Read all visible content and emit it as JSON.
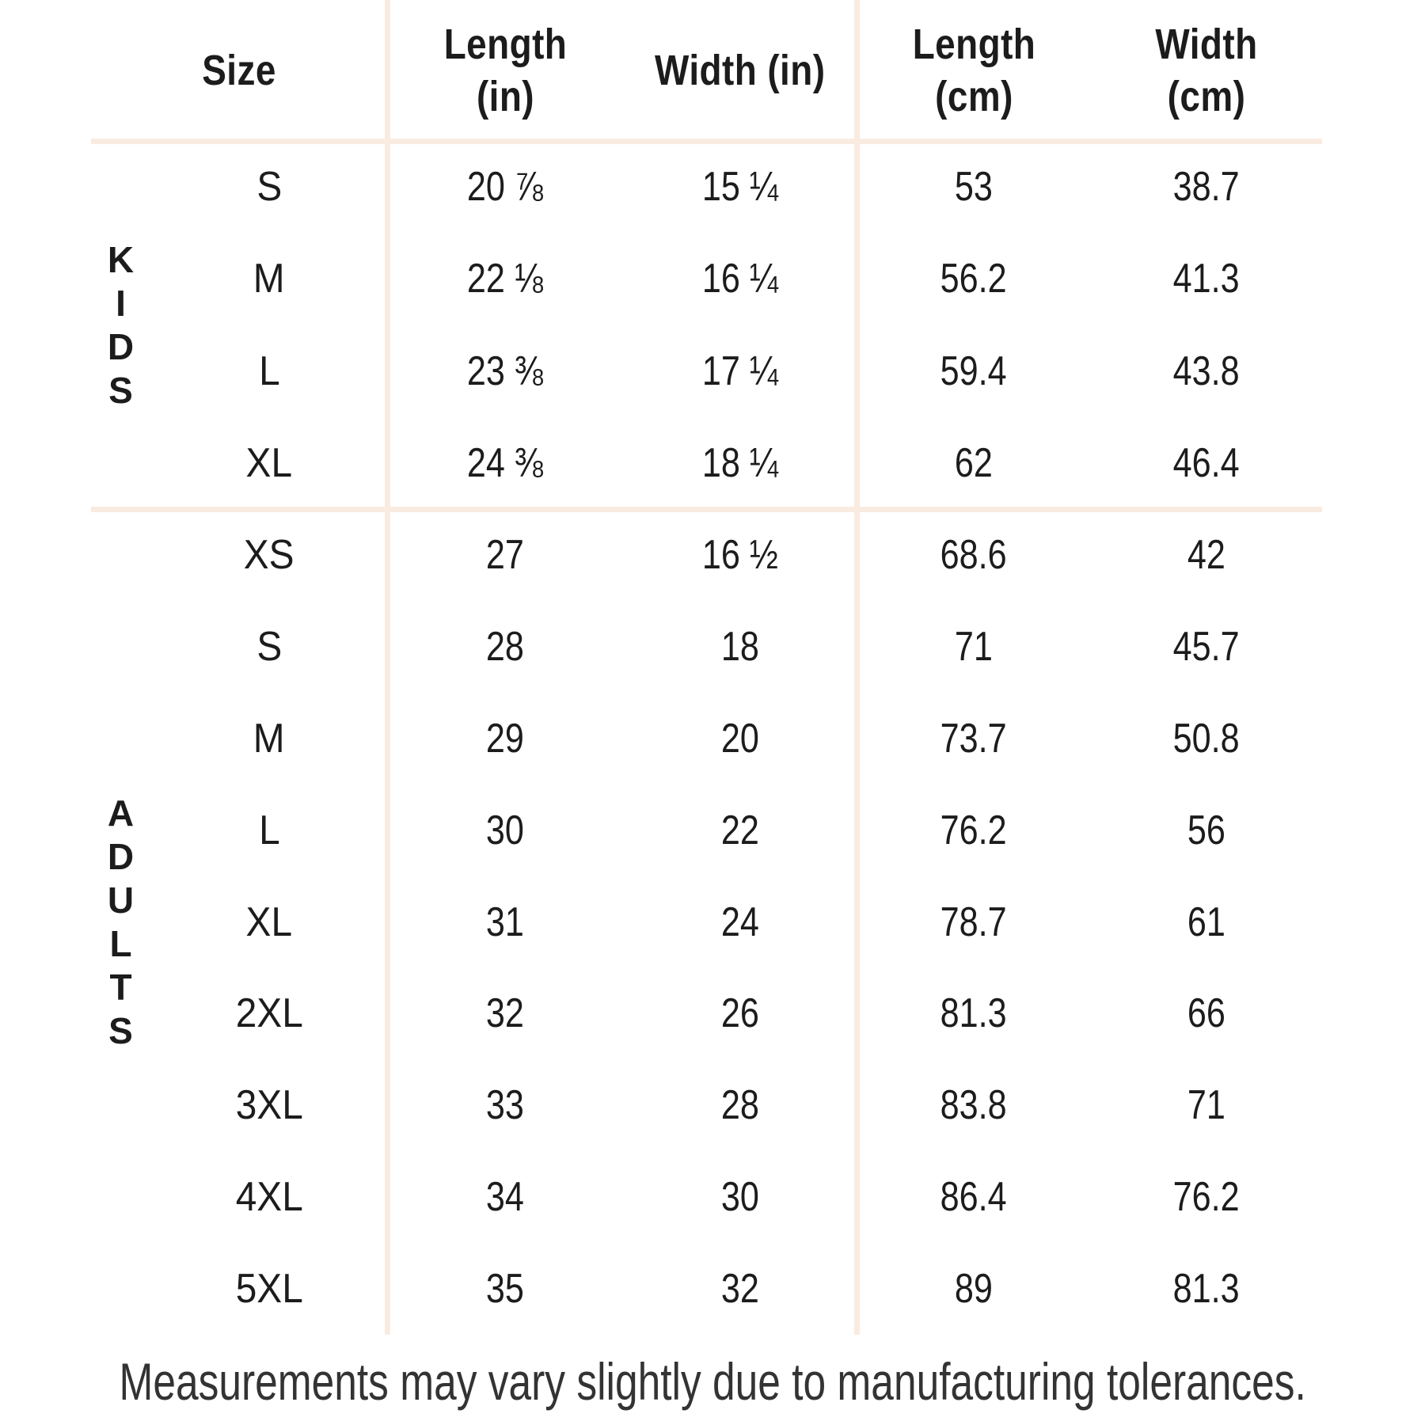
{
  "chart_data": {
    "type": "table",
    "header": {
      "size": "Size",
      "length_in": "Length\n(in)",
      "width_in": "Width (in)",
      "length_cm": "Length\n(cm)",
      "width_cm": "Width\n(cm)"
    },
    "groups": [
      {
        "label": "KIDS",
        "rows": [
          {
            "size": "S",
            "length_in": "20 ⅞",
            "width_in": "15 ¼",
            "length_cm": "53",
            "width_cm": "38.7"
          },
          {
            "size": "M",
            "length_in": "22 ⅛",
            "width_in": "16 ¼",
            "length_cm": "56.2",
            "width_cm": "41.3"
          },
          {
            "size": "L",
            "length_in": "23 ⅜",
            "width_in": "17 ¼",
            "length_cm": "59.4",
            "width_cm": "43.8"
          },
          {
            "size": "XL",
            "length_in": "24 ⅜",
            "width_in": "18 ¼",
            "length_cm": "62",
            "width_cm": "46.4"
          }
        ]
      },
      {
        "label": "ADULTS",
        "rows": [
          {
            "size": "XS",
            "length_in": "27",
            "width_in": "16 ½",
            "length_cm": "68.6",
            "width_cm": "42"
          },
          {
            "size": "S",
            "length_in": "28",
            "width_in": "18",
            "length_cm": "71",
            "width_cm": "45.7"
          },
          {
            "size": "M",
            "length_in": "29",
            "width_in": "20",
            "length_cm": "73.7",
            "width_cm": "50.8"
          },
          {
            "size": "L",
            "length_in": "30",
            "width_in": "22",
            "length_cm": "76.2",
            "width_cm": "56"
          },
          {
            "size": "XL",
            "length_in": "31",
            "width_in": "24",
            "length_cm": "78.7",
            "width_cm": "61"
          },
          {
            "size": "2XL",
            "length_in": "32",
            "width_in": "26",
            "length_cm": "81.3",
            "width_cm": "66"
          },
          {
            "size": "3XL",
            "length_in": "33",
            "width_in": "28",
            "length_cm": "83.8",
            "width_cm": "71"
          },
          {
            "size": "4XL",
            "length_in": "34",
            "width_in": "30",
            "length_cm": "86.4",
            "width_cm": "76.2"
          },
          {
            "size": "5XL",
            "length_in": "35",
            "width_in": "32",
            "length_cm": "89",
            "width_cm": "81.3"
          }
        ]
      }
    ],
    "footnote": "Measurements may vary slightly due to manufacturing tolerances."
  },
  "colors": {
    "background": "#ffffff",
    "divider": "#faebe1",
    "table_text": "#1d1c1c",
    "footnote_text": "#333333"
  }
}
